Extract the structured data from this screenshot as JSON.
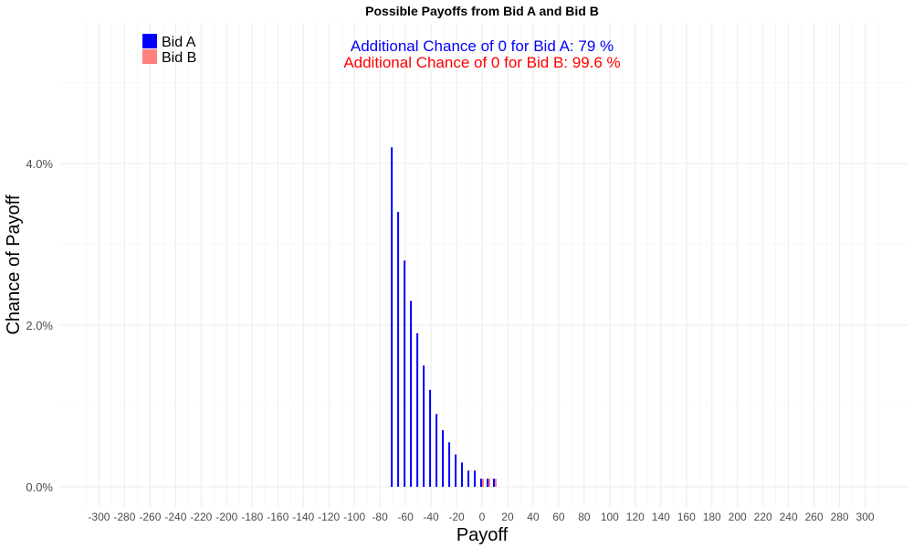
{
  "chart_data": {
    "type": "bar",
    "title": "Possible Payoffs from Bid A and Bid B",
    "xlabel": "Payoff",
    "ylabel": "Chance of Payoff",
    "xlim": [
      -310,
      310
    ],
    "ylim": [
      0,
      5.1
    ],
    "x_ticks": [
      -300,
      -280,
      -260,
      -240,
      -220,
      -200,
      -180,
      -160,
      -140,
      -120,
      -100,
      -80,
      -60,
      -40,
      -20,
      0,
      20,
      40,
      60,
      80,
      100,
      120,
      140,
      160,
      180,
      200,
      220,
      240,
      260,
      280,
      300
    ],
    "y_ticks": [
      {
        "value": 0,
        "label": "0.0%"
      },
      {
        "value": 2,
        "label": "2.0%"
      },
      {
        "value": 4,
        "label": "4.0%"
      }
    ],
    "grid": true,
    "legend_position": "top-left",
    "series": [
      {
        "name": "Bid A",
        "color": "#0000FF",
        "x": [
          -70,
          -65,
          -60,
          -55,
          -50,
          -45,
          -40,
          -35,
          -30,
          -25,
          -20,
          -15,
          -10,
          -5,
          0,
          5,
          10
        ],
        "values": [
          4.2,
          3.4,
          2.8,
          2.3,
          1.9,
          1.5,
          1.2,
          0.9,
          0.7,
          0.55,
          0.4,
          0.3,
          0.2,
          0.2,
          0.1,
          0.1,
          0.1
        ]
      },
      {
        "name": "Bid B",
        "color": "#FF7F7F",
        "x": [
          0,
          5,
          10
        ],
        "values": [
          0.1,
          0.1,
          0.1
        ]
      }
    ],
    "annotations": [
      {
        "label": "Additional Chance of 0 for Bid A:  79 %",
        "color": "#0000FF"
      },
      {
        "label": "Additional Chance of 0 for Bid B:  99.6 %",
        "color": "#FF0000"
      }
    ]
  }
}
